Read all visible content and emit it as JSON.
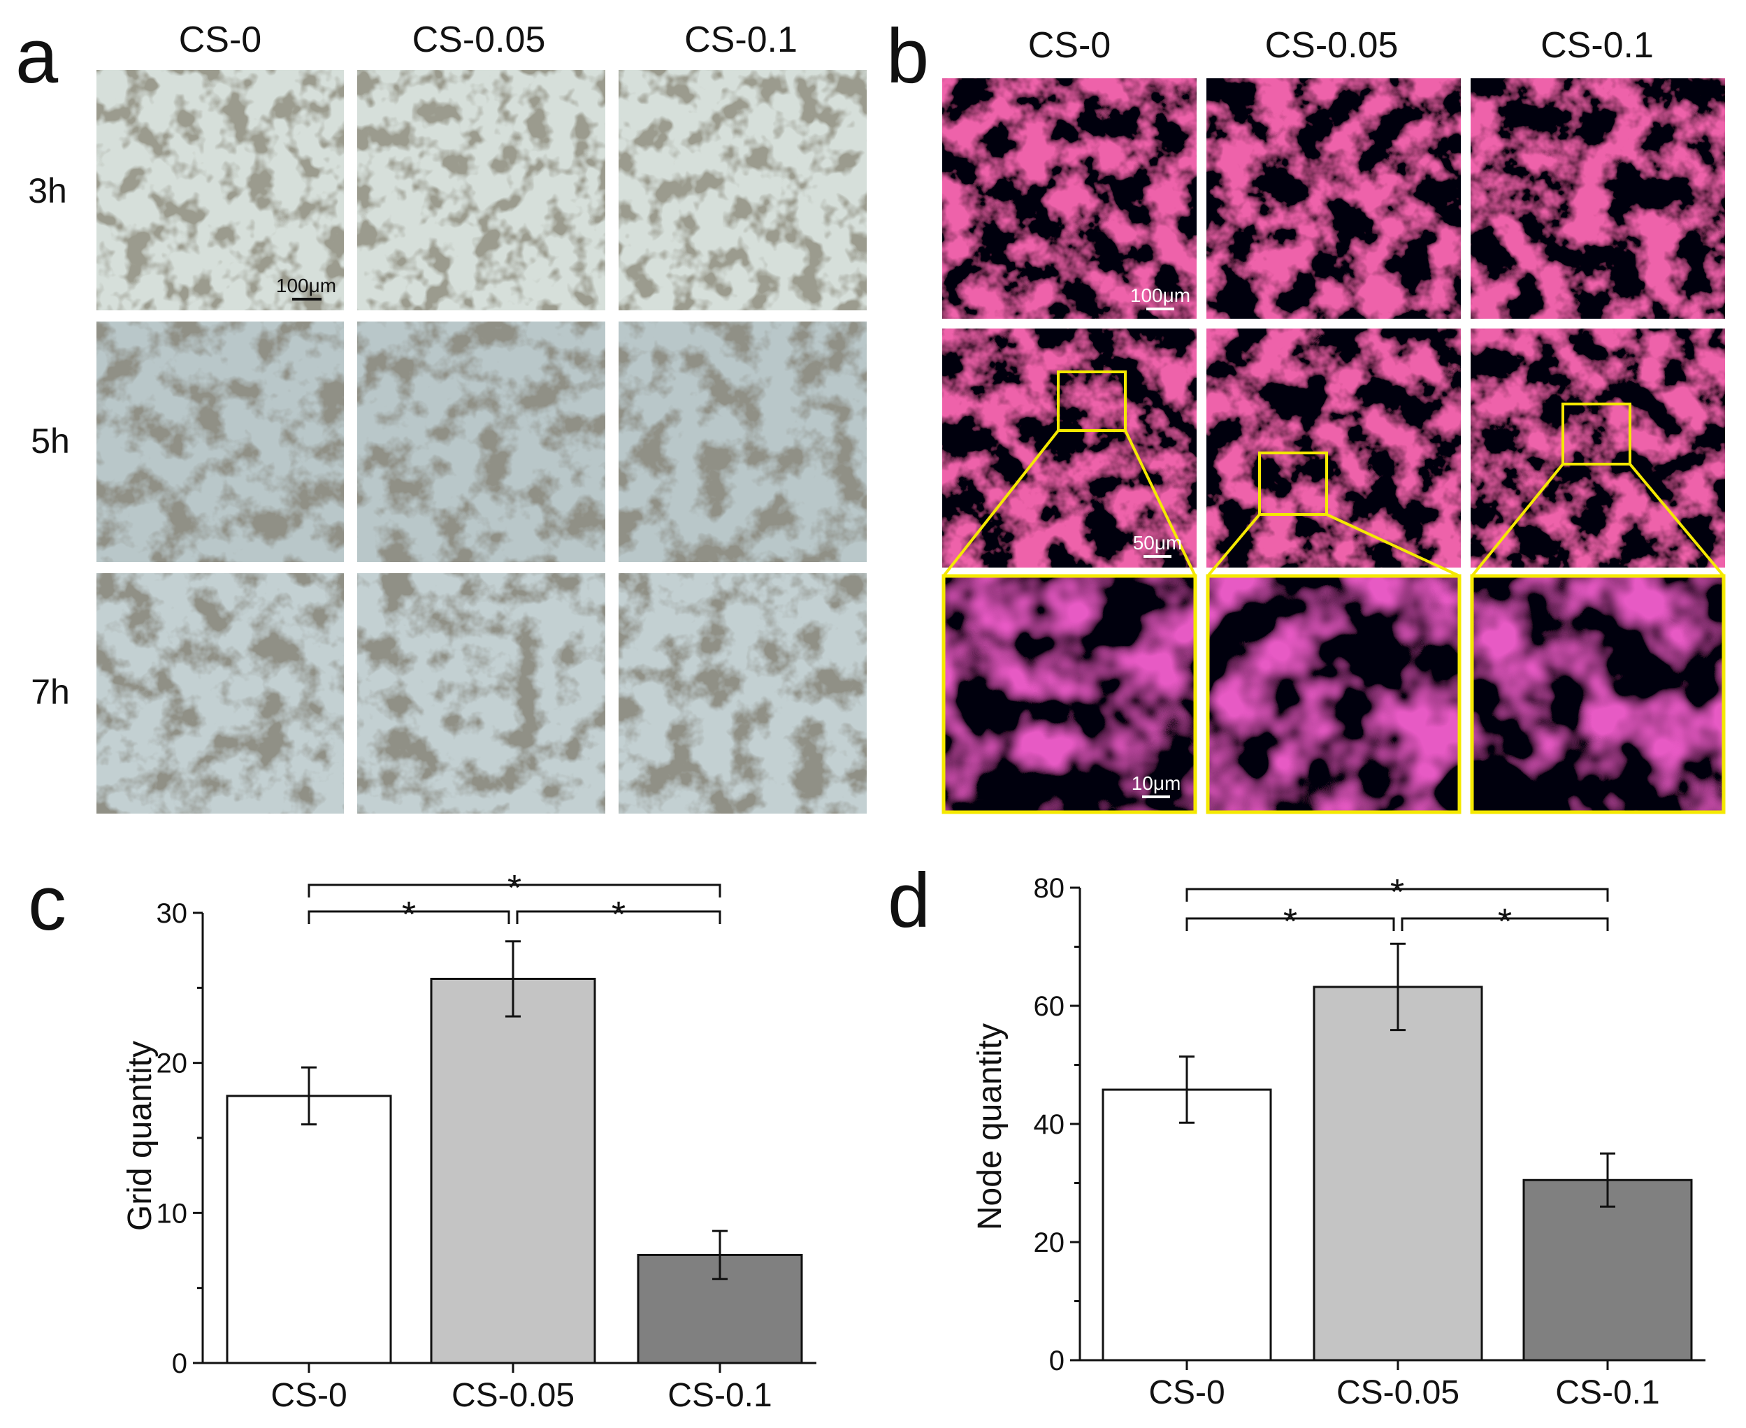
{
  "panel_a": {
    "label": "a",
    "columns": [
      "CS-0",
      "CS-0.05",
      "CS-0.1"
    ],
    "rows": [
      "3h",
      "5h",
      "7h"
    ],
    "scale_bar": "100μm"
  },
  "panel_b": {
    "label": "b",
    "columns": [
      "CS-0",
      "CS-0.05",
      "CS-0.1"
    ],
    "scale_bars": [
      "100μm",
      "50μm",
      "10μm"
    ]
  },
  "colors": {
    "brightfield_row1": "#d6dfda",
    "brightfield_row2": "#b9c7c9",
    "brightfield_row3": "#c3d0d2",
    "cells": "#5a5a48",
    "fluor_bg": "#05030e",
    "fluor_red": "#e8203a",
    "fluor_blue": "#4a2ae0",
    "inset_border": "#f5e900",
    "bar_cs0": "#ffffff",
    "bar_cs005": "#c4c4c4",
    "bar_cs01": "#808080"
  },
  "chart_data": [
    {
      "label": "c",
      "type": "bar",
      "categories": [
        "CS-0",
        "CS-0.05",
        "CS-0.1"
      ],
      "values": [
        17.8,
        25.6,
        7.2
      ],
      "errors": [
        1.9,
        2.5,
        1.6
      ],
      "ylabel": "Grid quantity",
      "ylim": [
        0,
        30
      ],
      "yticks": [
        "0",
        "10",
        "20",
        "30"
      ],
      "significance": [
        {
          "from": 0,
          "to": 1,
          "text": "*"
        },
        {
          "from": 1,
          "to": 2,
          "text": "*"
        },
        {
          "from": 0,
          "to": 2,
          "text": "*"
        }
      ]
    },
    {
      "label": "d",
      "type": "bar",
      "categories": [
        "CS-0",
        "CS-0.05",
        "CS-0.1"
      ],
      "values": [
        45.8,
        63.2,
        30.5
      ],
      "errors": [
        5.6,
        7.3,
        4.5
      ],
      "ylabel": "Node quantity",
      "ylim": [
        0,
        80
      ],
      "yticks": [
        "0",
        "20",
        "40",
        "60",
        "80"
      ],
      "significance": [
        {
          "from": 0,
          "to": 1,
          "text": "*"
        },
        {
          "from": 1,
          "to": 2,
          "text": "*"
        },
        {
          "from": 0,
          "to": 2,
          "text": "*"
        }
      ]
    }
  ]
}
